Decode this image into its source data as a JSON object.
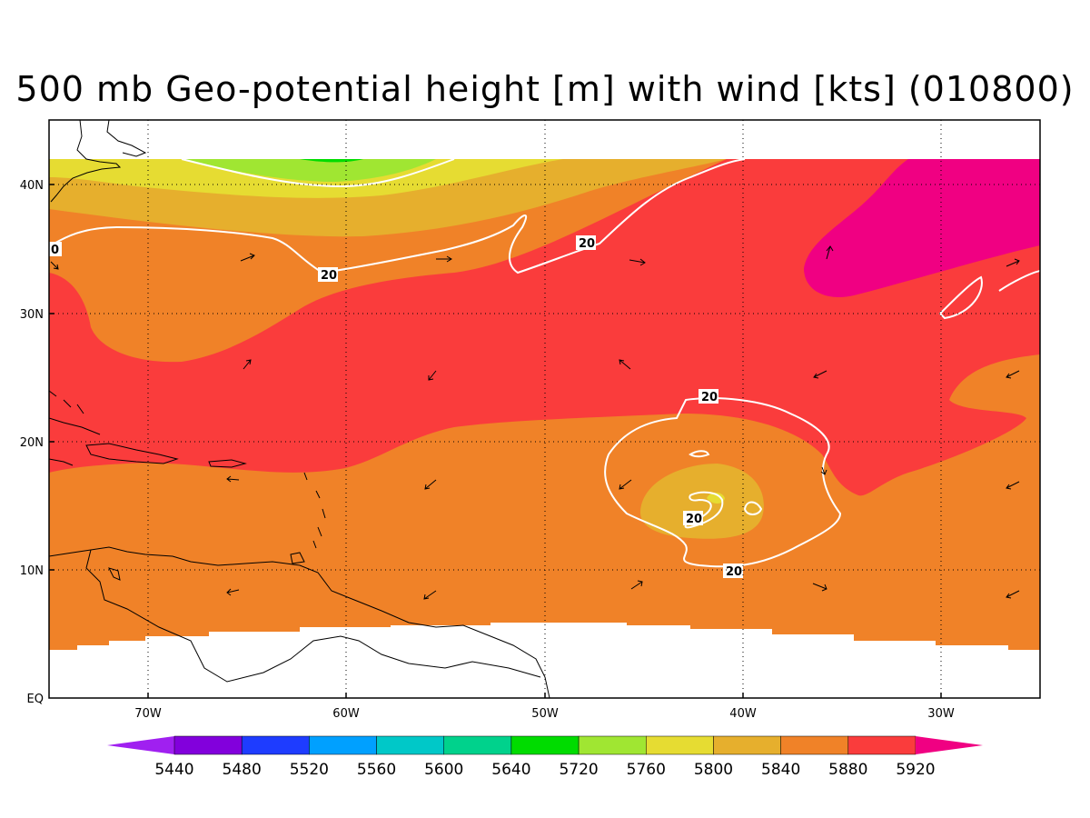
{
  "title": "500 mb Geo-potential height [m] with wind [kts] (010800)",
  "x_axis": {
    "ticks": [
      "70W",
      "60W",
      "50W",
      "40W",
      "30W"
    ],
    "range_lon": [
      -75,
      -25
    ]
  },
  "y_axis": {
    "ticks": [
      "EQ",
      "10N",
      "20N",
      "30N",
      "40N"
    ],
    "range_lat": [
      0,
      45
    ]
  },
  "grid": "dotted",
  "colorbar": {
    "labels": [
      "5440",
      "5480",
      "5520",
      "5560",
      "5600",
      "5640",
      "5720",
      "5760",
      "5800",
      "5840",
      "5880",
      "5920"
    ],
    "colors": [
      "#a020f0",
      "#8200dc",
      "#1e3cff",
      "#00a0ff",
      "#00c8c8",
      "#00d28c",
      "#00dc00",
      "#a0e632",
      "#e6dc32",
      "#e6af2d",
      "#f08228",
      "#fa3c3c",
      "#f00082"
    ]
  },
  "contour_labels": [
    "0",
    "20",
    "20",
    "20",
    "20",
    "20"
  ],
  "fill_colors": {
    "land_missing": "#ffffff",
    "c5840": "#e6af2d",
    "c5880": "#f08228",
    "c5920": "#fa3c3c",
    "c_high": "#f00082",
    "c5800": "#e6dc32",
    "c5760": "#a0e632",
    "c5720": "#00dc00"
  }
}
